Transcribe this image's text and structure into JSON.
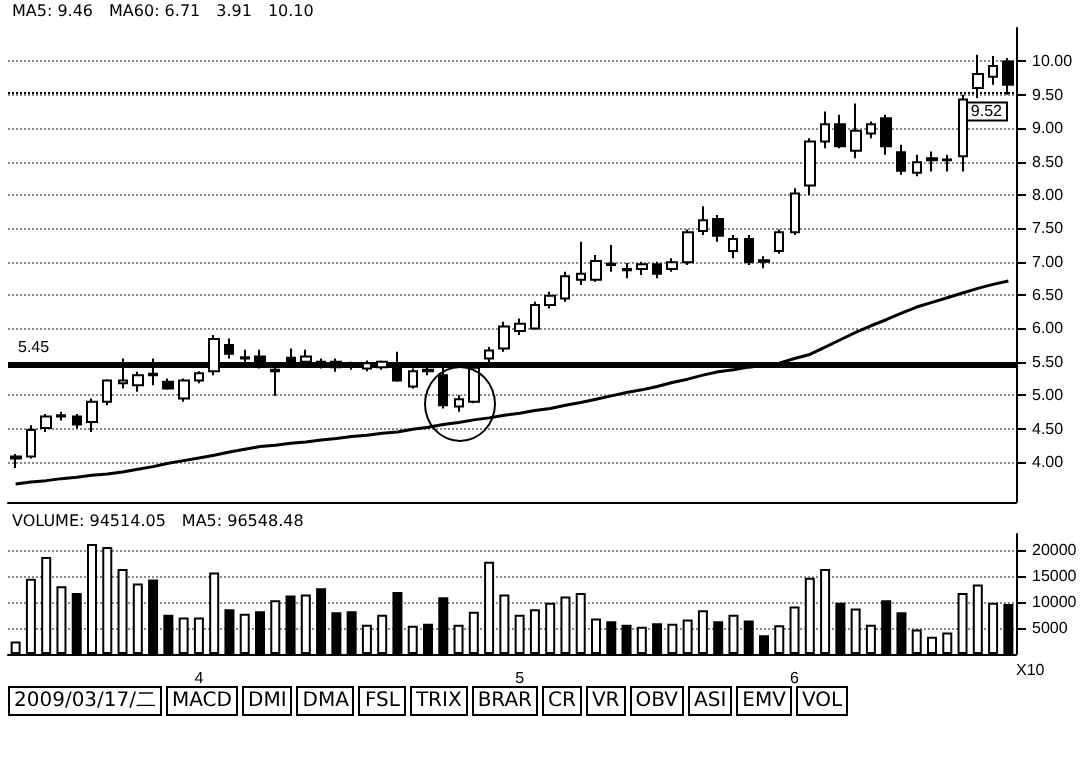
{
  "chart_data": [
    {
      "type": "candlestick",
      "annotations": [
        "MA5: 9.46",
        "MA60: 6.71",
        "3.91",
        "10.10"
      ],
      "categories": [
        null,
        null,
        null,
        null,
        null,
        null,
        null,
        null,
        null,
        null,
        null,
        null,
        "4",
        null,
        null,
        null,
        null,
        null,
        null,
        null,
        null,
        null,
        null,
        null,
        null,
        null,
        null,
        null,
        null,
        null,
        null,
        null,
        null,
        "5",
        null,
        null,
        null,
        null,
        null,
        null,
        null,
        null,
        null,
        null,
        null,
        null,
        null,
        null,
        null,
        null,
        null,
        "6",
        null,
        null,
        null,
        null,
        null,
        null,
        null,
        null,
        null,
        null,
        null,
        null,
        null,
        null
      ],
      "ohlc": [
        [
          4.05,
          4.12,
          3.91,
          4.08
        ],
        [
          4.08,
          4.55,
          4.05,
          4.48
        ],
        [
          4.51,
          4.72,
          4.45,
          4.68
        ],
        [
          4.68,
          4.75,
          4.62,
          4.7
        ],
        [
          4.68,
          4.72,
          4.5,
          4.56
        ],
        [
          4.6,
          4.95,
          4.45,
          4.9
        ],
        [
          4.9,
          5.24,
          4.85,
          5.22
        ],
        [
          5.18,
          5.55,
          5.1,
          5.22
        ],
        [
          5.15,
          5.35,
          5.05,
          5.3
        ],
        [
          5.3,
          5.55,
          5.15,
          5.32
        ],
        [
          5.2,
          5.25,
          5.08,
          5.1
        ],
        [
          4.95,
          5.25,
          4.9,
          5.22
        ],
        [
          5.22,
          5.36,
          5.18,
          5.33
        ],
        [
          5.36,
          5.9,
          5.3,
          5.84
        ],
        [
          5.75,
          5.85,
          5.55,
          5.62
        ],
        [
          5.55,
          5.68,
          5.45,
          5.57
        ],
        [
          5.58,
          5.68,
          5.4,
          5.44
        ],
        [
          5.36,
          5.45,
          4.99,
          5.38
        ],
        [
          5.56,
          5.7,
          5.45,
          5.48
        ],
        [
          5.5,
          5.68,
          5.45,
          5.58
        ],
        [
          5.5,
          5.55,
          5.4,
          5.48
        ],
        [
          5.5,
          5.55,
          5.35,
          5.42
        ],
        [
          5.44,
          5.5,
          5.38,
          5.45
        ],
        [
          5.4,
          5.52,
          5.36,
          5.48
        ],
        [
          5.42,
          5.52,
          5.38,
          5.5
        ],
        [
          5.48,
          5.65,
          5.2,
          5.22
        ],
        [
          5.13,
          5.4,
          5.1,
          5.36
        ],
        [
          5.36,
          5.45,
          5.3,
          5.38
        ],
        [
          5.3,
          5.45,
          4.8,
          4.85
        ],
        [
          4.83,
          5.0,
          4.75,
          4.94
        ],
        [
          4.9,
          5.45,
          4.88,
          5.41
        ],
        [
          5.55,
          5.72,
          5.45,
          5.67
        ],
        [
          5.7,
          6.1,
          5.65,
          6.03
        ],
        [
          5.96,
          6.15,
          5.9,
          6.07
        ],
        [
          6.0,
          6.4,
          5.98,
          6.35
        ],
        [
          6.35,
          6.55,
          6.3,
          6.49
        ],
        [
          6.45,
          6.85,
          6.4,
          6.78
        ],
        [
          6.73,
          7.3,
          6.65,
          6.82
        ],
        [
          6.73,
          7.1,
          6.7,
          7.01
        ],
        [
          6.95,
          7.25,
          6.85,
          6.97
        ],
        [
          6.87,
          6.98,
          6.75,
          6.89
        ],
        [
          6.89,
          7.0,
          6.8,
          6.96
        ],
        [
          6.96,
          7.0,
          6.75,
          6.82
        ],
        [
          6.89,
          7.05,
          6.85,
          6.99
        ],
        [
          6.99,
          7.48,
          6.95,
          7.44
        ],
        [
          7.46,
          7.83,
          7.4,
          7.62
        ],
        [
          7.64,
          7.7,
          7.3,
          7.39
        ],
        [
          7.16,
          7.4,
          7.05,
          7.34
        ],
        [
          7.34,
          7.4,
          6.95,
          6.99
        ],
        [
          7.0,
          7.08,
          6.9,
          7.02
        ],
        [
          7.16,
          7.48,
          7.12,
          7.44
        ],
        [
          7.44,
          8.1,
          7.4,
          8.02
        ],
        [
          8.14,
          8.85,
          8.0,
          8.8
        ],
        [
          8.8,
          9.25,
          8.7,
          9.06
        ],
        [
          9.06,
          9.2,
          8.7,
          8.73
        ],
        [
          8.66,
          9.37,
          8.55,
          8.96
        ],
        [
          8.92,
          9.1,
          8.85,
          9.06
        ],
        [
          9.15,
          9.2,
          8.6,
          8.73
        ],
        [
          8.64,
          8.75,
          8.3,
          8.36
        ],
        [
          8.33,
          8.6,
          8.28,
          8.49
        ],
        [
          8.52,
          8.65,
          8.35,
          8.55
        ],
        [
          8.52,
          8.6,
          8.35,
          8.53
        ],
        [
          8.58,
          9.5,
          8.35,
          9.43
        ],
        [
          9.6,
          10.1,
          9.45,
          9.81
        ],
        [
          9.77,
          10.08,
          9.65,
          9.93
        ],
        [
          10.0,
          10.05,
          9.5,
          9.65
        ]
      ],
      "series": [
        {
          "type": "line",
          "color": "#000000",
          "values": [
            3.67,
            3.7,
            3.72,
            3.75,
            3.77,
            3.8,
            3.82,
            3.85,
            3.89,
            3.93,
            3.98,
            4.02,
            4.06,
            4.1,
            4.15,
            4.19,
            4.23,
            4.25,
            4.28,
            4.3,
            4.33,
            4.35,
            4.38,
            4.4,
            4.43,
            4.45,
            4.49,
            4.52,
            4.56,
            4.59,
            4.63,
            4.66,
            4.7,
            4.73,
            4.77,
            4.8,
            4.85,
            4.89,
            4.94,
            4.99,
            5.04,
            5.08,
            5.13,
            5.19,
            5.24,
            5.3,
            5.35,
            5.38,
            5.42,
            5.45,
            5.48,
            5.55,
            5.61,
            5.72,
            5.83,
            5.94,
            6.04,
            6.13,
            6.23,
            6.32,
            6.39,
            6.46,
            6.53,
            6.6,
            6.66,
            6.71
          ]
        }
      ],
      "ylim": [
        3.4,
        10.5
      ],
      "yticks": [
        {
          "value": 4,
          "label": "4.00"
        },
        {
          "value": 4.5,
          "label": "4.50"
        },
        {
          "value": 5,
          "label": "5.00"
        },
        {
          "value": 5.5,
          "label": "5.50"
        },
        {
          "value": 6,
          "label": "6.00"
        },
        {
          "value": 6.5,
          "label": "6.50"
        },
        {
          "value": 7,
          "label": "7.00"
        },
        {
          "value": 7.5,
          "label": "7.50"
        },
        {
          "value": 8,
          "label": "8.00"
        },
        {
          "value": 8.5,
          "label": "8.50"
        },
        {
          "value": 9,
          "label": "9.00"
        },
        {
          "value": 9.5,
          "label": "9.50"
        },
        {
          "value": 10,
          "label": "10.00"
        }
      ],
      "ref_lines": [
        {
          "axis": "y",
          "value": 5.45,
          "label": "5.45",
          "color": "#000000"
        },
        {
          "axis": "y",
          "value": 9.52,
          "label": "9.52",
          "color": "#000000",
          "line_style": "dotted"
        }
      ],
      "grid": "y",
      "tick_labels": "y"
    },
    {
      "type": "bar",
      "annotations": [
        "VOLUME: 94514.05",
        "MA5: 96548.48"
      ],
      "ylabel": "X10",
      "categories": [
        null,
        null,
        null,
        null,
        null,
        null,
        null,
        null,
        null,
        null,
        null,
        null,
        "4",
        null,
        null,
        null,
        null,
        null,
        null,
        null,
        null,
        null,
        null,
        null,
        null,
        null,
        null,
        null,
        null,
        null,
        null,
        null,
        null,
        "5",
        null,
        null,
        null,
        null,
        null,
        null,
        null,
        null,
        null,
        null,
        null,
        null,
        null,
        null,
        null,
        null,
        null,
        "6",
        null,
        null,
        null,
        null,
        null,
        null,
        null,
        null,
        null,
        null,
        null,
        null,
        null,
        null
      ],
      "values": [
        2400,
        14400,
        18600,
        13000,
        11700,
        21100,
        20500,
        16300,
        13500,
        14300,
        7500,
        7000,
        7000,
        15600,
        8600,
        7700,
        8200,
        10300,
        11200,
        11400,
        12600,
        8000,
        8200,
        5600,
        7500,
        11900,
        5400,
        5800,
        10900,
        5600,
        8100,
        17700,
        11400,
        7500,
        8600,
        9800,
        11000,
        11700,
        6800,
        6300,
        5600,
        5200,
        5900,
        5800,
        6600,
        8400,
        6300,
        7500,
        6400,
        3600,
        5500,
        9100,
        14600,
        16300,
        9800,
        8700,
        5600,
        10300,
        8000,
        4700,
        3300,
        4100,
        11700,
        13300,
        9800,
        9600
      ],
      "colors": [
        "#ffffff",
        "#ffffff",
        "#ffffff",
        "#ffffff",
        "#000000",
        "#ffffff",
        "#ffffff",
        "#ffffff",
        "#ffffff",
        "#000000",
        "#000000",
        "#ffffff",
        "#ffffff",
        "#ffffff",
        "#000000",
        "#ffffff",
        "#000000",
        "#ffffff",
        "#000000",
        "#ffffff",
        "#000000",
        "#000000",
        "#000000",
        "#ffffff",
        "#ffffff",
        "#000000",
        "#ffffff",
        "#000000",
        "#000000",
        "#ffffff",
        "#ffffff",
        "#ffffff",
        "#ffffff",
        "#ffffff",
        "#ffffff",
        "#ffffff",
        "#ffffff",
        "#ffffff",
        "#ffffff",
        "#000000",
        "#000000",
        "#ffffff",
        "#000000",
        "#ffffff",
        "#ffffff",
        "#ffffff",
        "#000000",
        "#ffffff",
        "#000000",
        "#000000",
        "#ffffff",
        "#ffffff",
        "#ffffff",
        "#ffffff",
        "#000000",
        "#ffffff",
        "#ffffff",
        "#000000",
        "#000000",
        "#ffffff",
        "#ffffff",
        "#ffffff",
        "#ffffff",
        "#ffffff",
        "#ffffff",
        "#000000"
      ],
      "ylim": [
        0,
        23000
      ],
      "yticks": [
        5000,
        10000,
        15000,
        20000
      ],
      "grid": "y"
    },
    {
      "type": "other",
      "annotations": [
        "2009/03/17/二",
        "MACD",
        "DMI",
        "DMA",
        "FSL",
        "TRIX",
        "BRAR",
        "CR",
        "VR",
        "OBV",
        "ASI",
        "EMV",
        "VOL"
      ]
    }
  ]
}
